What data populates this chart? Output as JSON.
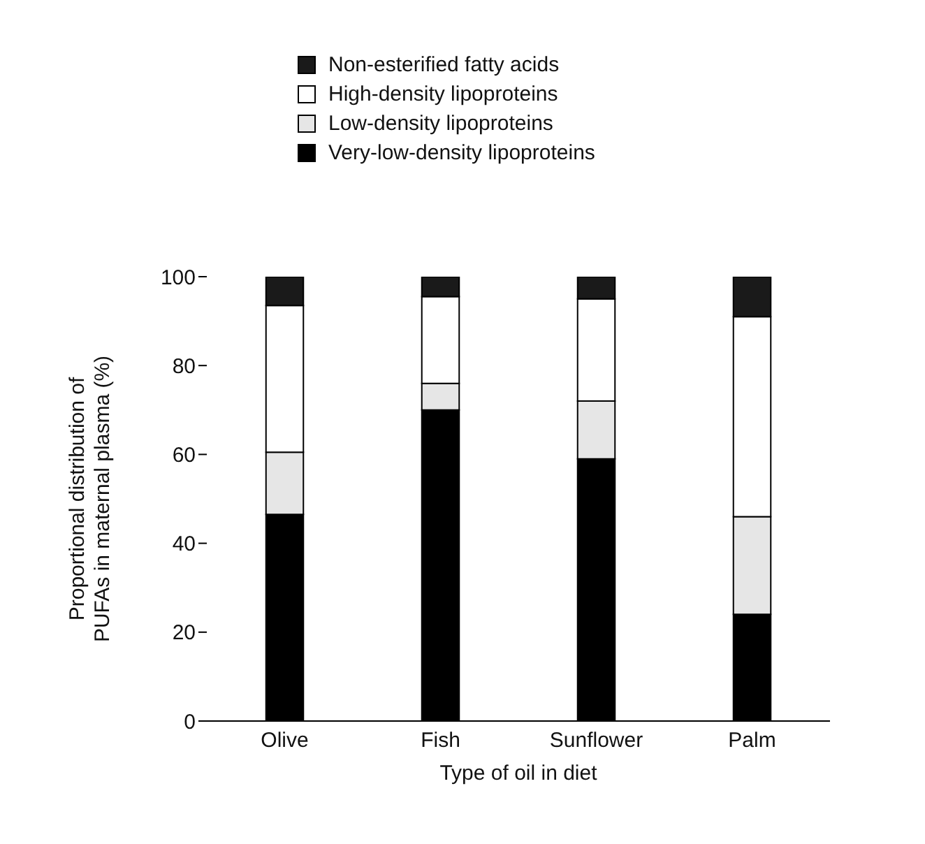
{
  "chart_data": {
    "type": "bar",
    "stacked": true,
    "xlabel": "Type of oil in diet",
    "ylabel": "Proportional distribution of PUFAs in maternal plasma (%)",
    "categories": [
      "Olive",
      "Fish",
      "Sunflower",
      "Palm"
    ],
    "series": [
      {
        "name": "Very-low-density lipoproteins",
        "color": "#000000",
        "values": [
          46.5,
          70,
          59,
          24
        ]
      },
      {
        "name": "Low-density lipoproteins",
        "color": "#e6e6e6",
        "values": [
          14,
          6,
          13,
          22
        ]
      },
      {
        "name": "High-density lipoproteins",
        "color": "#ffffff",
        "values": [
          33,
          19.5,
          23,
          45
        ]
      },
      {
        "name": "Non-esterified fatty acids",
        "color": "#1a1a1a",
        "values": [
          6.5,
          4.5,
          5,
          9
        ]
      }
    ],
    "ylim": [
      0,
      100
    ],
    "yticks": [
      0,
      20,
      40,
      60,
      80,
      100
    ],
    "legend": "top",
    "grid": false
  }
}
